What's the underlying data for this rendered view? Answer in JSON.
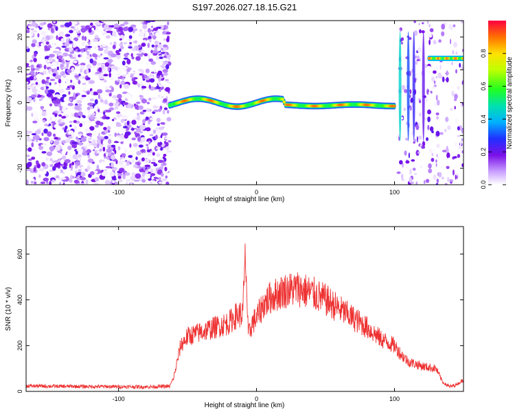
{
  "title": "S197.2026.027.18.15.G21",
  "chart_data": [
    {
      "type": "heatmap",
      "xlabel": "Height of straight line (km)",
      "ylabel": "Frequency (Hz)",
      "xlim": [
        -167,
        150
      ],
      "ylim": [
        -25,
        25
      ],
      "xticks": [
        -100,
        0,
        100
      ],
      "yticks": [
        -20,
        -10,
        0,
        10,
        20
      ],
      "xtick_labels": [
        "-100",
        "0",
        "100"
      ],
      "ytick_labels": [
        "-20",
        "-10",
        "0",
        "10",
        "20"
      ],
      "colorbar": {
        "label": "Normalized spectral amplitude",
        "range": [
          0.0,
          1.0
        ],
        "ticks": [
          0.0,
          0.2,
          0.4,
          0.6,
          0.8
        ],
        "tick_labels": [
          "0.0",
          "0.2",
          "0.4",
          "0.6",
          "0.8"
        ]
      },
      "regions": [
        {
          "name": "noise",
          "x_range": [
            -167,
            -63
          ],
          "frequency_range": [
            -25,
            25
          ],
          "amplitude": 0.15
        },
        {
          "name": "carrier",
          "x_range": [
            -63,
            100
          ],
          "frequency": 0,
          "amplitude": 0.9
        },
        {
          "name": "scattered",
          "x_range": [
            103,
            150
          ],
          "frequency_range": [
            -25,
            25
          ],
          "amplitude": 0.25
        },
        {
          "name": "upper-tone",
          "x_range": [
            125,
            150
          ],
          "frequency": 13.5,
          "amplitude": 0.9
        }
      ]
    },
    {
      "type": "line",
      "xlabel": "Height of straight line (km)",
      "ylabel": "SNR (10 * v/v)",
      "xlim": [
        -167,
        150
      ],
      "ylim": [
        0,
        720
      ],
      "xticks": [
        -100,
        0,
        100
      ],
      "yticks": [
        0,
        200,
        400,
        600
      ],
      "xtick_labels": [
        "-100",
        "0",
        "100"
      ],
      "ytick_labels": [
        "0",
        "200",
        "400",
        "600"
      ],
      "series": [
        {
          "name": "SNR",
          "color": "#ee3030",
          "x": [
            -167,
            -140,
            -110,
            -80,
            -63,
            -60,
            -55,
            -50,
            -40,
            -30,
            -20,
            -15,
            -10,
            -8,
            -6,
            -3,
            0,
            5,
            10,
            20,
            30,
            40,
            50,
            60,
            70,
            80,
            90,
            100,
            105,
            110,
            115,
            120,
            125,
            130,
            135,
            140,
            145,
            150
          ],
          "y": [
            24,
            22,
            21,
            20,
            22,
            60,
            200,
            240,
            260,
            280,
            300,
            330,
            340,
            600,
            240,
            300,
            320,
            380,
            410,
            440,
            450,
            430,
            400,
            360,
            320,
            280,
            230,
            200,
            160,
            130,
            120,
            110,
            105,
            100,
            40,
            20,
            30,
            50
          ]
        }
      ]
    }
  ]
}
